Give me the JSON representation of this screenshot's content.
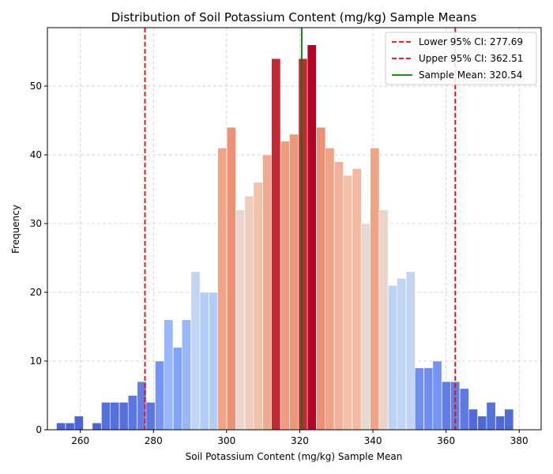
{
  "chart_data": {
    "type": "bar",
    "title": "Distribution of Soil Potassium Content (mg/kg) Sample Means",
    "xlabel": "Soil Potassium Content (mg/kg) Sample Mean",
    "ylabel": "Frequency",
    "xlim": [
      251,
      386
    ],
    "ylim": [
      0,
      58.5
    ],
    "xticks": [
      260,
      280,
      300,
      320,
      340,
      360,
      380
    ],
    "yticks": [
      0,
      10,
      20,
      30,
      40,
      50
    ],
    "grid": true,
    "legend_position": "top-right",
    "bin_width": 2.45,
    "bins": [
      {
        "x": 254.7,
        "value": 1,
        "color": "#4a66d4"
      },
      {
        "x": 257.2,
        "value": 1,
        "color": "#4a66d4"
      },
      {
        "x": 259.6,
        "value": 2,
        "color": "#4a66d4"
      },
      {
        "x": 262.1,
        "value": 0,
        "color": "#4a66d4"
      },
      {
        "x": 264.5,
        "value": 1,
        "color": "#4a66d4"
      },
      {
        "x": 267.0,
        "value": 4,
        "color": "#5470dc"
      },
      {
        "x": 269.4,
        "value": 4,
        "color": "#5470dc"
      },
      {
        "x": 271.9,
        "value": 4,
        "color": "#5470dc"
      },
      {
        "x": 274.3,
        "value": 5,
        "color": "#5a76e0"
      },
      {
        "x": 276.8,
        "value": 7,
        "color": "#627ee4"
      },
      {
        "x": 279.2,
        "value": 4,
        "color": "#5a76e0"
      },
      {
        "x": 281.7,
        "value": 10,
        "color": "#7495f3"
      },
      {
        "x": 284.1,
        "value": 16,
        "color": "#98b6fb"
      },
      {
        "x": 286.6,
        "value": 12,
        "color": "#82a4f6"
      },
      {
        "x": 289.0,
        "value": 16,
        "color": "#98b6fb"
      },
      {
        "x": 291.5,
        "value": 23,
        "color": "#c4d5f3"
      },
      {
        "x": 293.9,
        "value": 20,
        "color": "#b3cdfb"
      },
      {
        "x": 296.4,
        "value": 20,
        "color": "#b3cdfb"
      },
      {
        "x": 298.8,
        "value": 41,
        "color": "#f1a385"
      },
      {
        "x": 301.3,
        "value": 44,
        "color": "#ec9174"
      },
      {
        "x": 303.7,
        "value": 32,
        "color": "#ead6cc"
      },
      {
        "x": 306.2,
        "value": 34,
        "color": "#efcdbc"
      },
      {
        "x": 308.6,
        "value": 36,
        "color": "#f3c2ab"
      },
      {
        "x": 311.1,
        "value": 40,
        "color": "#f2a98d"
      },
      {
        "x": 313.5,
        "value": 54,
        "color": "#c12a33"
      },
      {
        "x": 316.0,
        "value": 42,
        "color": "#ef9c7f"
      },
      {
        "x": 318.4,
        "value": 43,
        "color": "#ee9779"
      },
      {
        "x": 320.9,
        "value": 54,
        "color": "#c12a33"
      },
      {
        "x": 323.3,
        "value": 56,
        "color": "#b40426"
      },
      {
        "x": 325.8,
        "value": 44,
        "color": "#ec9174"
      },
      {
        "x": 328.2,
        "value": 41,
        "color": "#f1a385"
      },
      {
        "x": 330.7,
        "value": 39,
        "color": "#f4b199"
      },
      {
        "x": 333.1,
        "value": 37,
        "color": "#f4c0a6"
      },
      {
        "x": 335.6,
        "value": 38,
        "color": "#f4b79f"
      },
      {
        "x": 338.0,
        "value": 30,
        "color": "#e7d9d1"
      },
      {
        "x": 340.5,
        "value": 41,
        "color": "#f1a385"
      },
      {
        "x": 342.9,
        "value": 32,
        "color": "#ead6cc"
      },
      {
        "x": 345.4,
        "value": 21,
        "color": "#bcd2f7"
      },
      {
        "x": 347.8,
        "value": 22,
        "color": "#c0d4f5"
      },
      {
        "x": 350.3,
        "value": 23,
        "color": "#c4d5f3"
      },
      {
        "x": 352.7,
        "value": 9,
        "color": "#6f8ff0"
      },
      {
        "x": 355.2,
        "value": 9,
        "color": "#6f8ff0"
      },
      {
        "x": 357.6,
        "value": 10,
        "color": "#7495f3"
      },
      {
        "x": 360.1,
        "value": 7,
        "color": "#627ee4"
      },
      {
        "x": 362.5,
        "value": 7,
        "color": "#627ee4"
      },
      {
        "x": 365.0,
        "value": 6,
        "color": "#5e7ae2"
      },
      {
        "x": 367.4,
        "value": 3,
        "color": "#516cd8"
      },
      {
        "x": 369.9,
        "value": 2,
        "color": "#4d69d6"
      },
      {
        "x": 372.3,
        "value": 4,
        "color": "#5470dc"
      },
      {
        "x": 374.8,
        "value": 2,
        "color": "#4d69d6"
      },
      {
        "x": 377.2,
        "value": 3,
        "color": "#516cd8"
      }
    ],
    "reference_lines": [
      {
        "value": 277.69,
        "label": "Lower 95% CI: 277.69",
        "color": "#ff0000",
        "style": "dashed"
      },
      {
        "value": 362.51,
        "label": "Upper 95% CI: 362.51",
        "color": "#ff0000",
        "style": "dashed"
      },
      {
        "value": 320.54,
        "label": "Sample Mean: 320.54",
        "color": "#008000",
        "style": "solid"
      }
    ]
  }
}
